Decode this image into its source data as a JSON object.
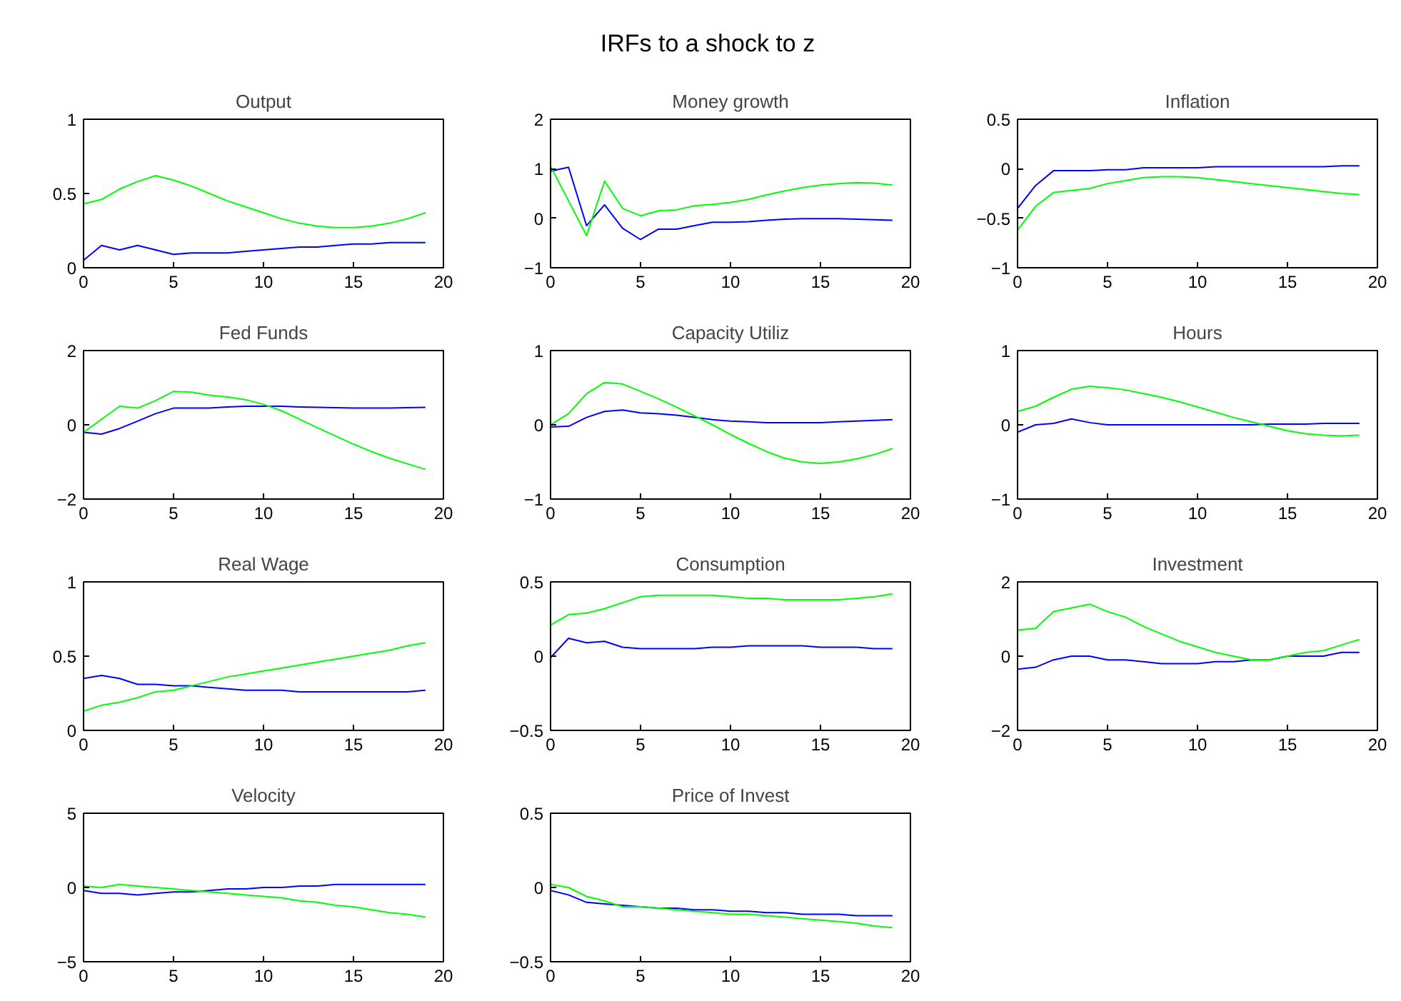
{
  "chart_data": [
    {
      "type": "other",
      "title": "IRFs to a shock to z"
    },
    {
      "type": "line",
      "title": "Output",
      "x": [
        0,
        1,
        2,
        3,
        4,
        5,
        6,
        7,
        8,
        9,
        10,
        11,
        12,
        13,
        14,
        15,
        16,
        17,
        18,
        19
      ],
      "xlim": [
        0,
        20
      ],
      "xticks": [
        0,
        5,
        10,
        15,
        20
      ],
      "ylim": [
        0,
        1
      ],
      "yticks": [
        0,
        0.5,
        1
      ],
      "series": [
        {
          "color": "#0000ff",
          "values": [
            0.05,
            0.15,
            0.12,
            0.15,
            0.12,
            0.09,
            0.1,
            0.1,
            0.1,
            0.11,
            0.12,
            0.13,
            0.14,
            0.14,
            0.15,
            0.16,
            0.16,
            0.17,
            0.17,
            0.17
          ]
        },
        {
          "color": "#00ff00",
          "values": [
            0.43,
            0.46,
            0.53,
            0.58,
            0.62,
            0.59,
            0.55,
            0.5,
            0.45,
            0.41,
            0.37,
            0.33,
            0.3,
            0.28,
            0.27,
            0.27,
            0.28,
            0.3,
            0.33,
            0.37
          ]
        }
      ]
    },
    {
      "type": "line",
      "title": "Money growth",
      "x": [
        0,
        1,
        2,
        3,
        4,
        5,
        6,
        7,
        8,
        9,
        10,
        11,
        12,
        13,
        14,
        15,
        16,
        17,
        18,
        19
      ],
      "xlim": [
        0,
        20
      ],
      "xticks": [
        0,
        5,
        10,
        15,
        20
      ],
      "ylim": [
        -1,
        2
      ],
      "yticks": [
        -1,
        0,
        1,
        2
      ],
      "series": [
        {
          "color": "#0000ff",
          "values": [
            0.95,
            1.03,
            -0.15,
            0.27,
            -0.2,
            -0.43,
            -0.22,
            -0.22,
            -0.15,
            -0.08,
            -0.08,
            -0.07,
            -0.04,
            -0.02,
            -0.01,
            -0.01,
            -0.01,
            -0.02,
            -0.03,
            -0.04
          ]
        },
        {
          "color": "#00ff00",
          "values": [
            1.05,
            0.35,
            -0.35,
            0.75,
            0.2,
            0.05,
            0.15,
            0.17,
            0.25,
            0.28,
            0.32,
            0.38,
            0.47,
            0.55,
            0.62,
            0.67,
            0.7,
            0.72,
            0.71,
            0.67
          ]
        }
      ]
    },
    {
      "type": "line",
      "title": "Inflation",
      "x": [
        0,
        1,
        2,
        3,
        4,
        5,
        6,
        7,
        8,
        9,
        10,
        11,
        12,
        13,
        14,
        15,
        16,
        17,
        18,
        19
      ],
      "xlim": [
        0,
        20
      ],
      "xticks": [
        0,
        5,
        10,
        15,
        20
      ],
      "ylim": [
        -1,
        0.5
      ],
      "yticks": [
        -1,
        -0.5,
        0,
        0.5
      ],
      "series": [
        {
          "color": "#0000ff",
          "values": [
            -0.4,
            -0.17,
            -0.02,
            -0.02,
            -0.02,
            -0.01,
            -0.01,
            0.01,
            0.01,
            0.01,
            0.01,
            0.02,
            0.02,
            0.02,
            0.02,
            0.02,
            0.02,
            0.02,
            0.03,
            0.03
          ]
        },
        {
          "color": "#00ff00",
          "values": [
            -0.62,
            -0.38,
            -0.24,
            -0.22,
            -0.2,
            -0.15,
            -0.12,
            -0.09,
            -0.08,
            -0.08,
            -0.09,
            -0.11,
            -0.13,
            -0.15,
            -0.17,
            -0.19,
            -0.21,
            -0.23,
            -0.25,
            -0.26
          ]
        }
      ]
    },
    {
      "type": "line",
      "title": "Fed Funds",
      "x": [
        0,
        1,
        2,
        3,
        4,
        5,
        6,
        7,
        8,
        9,
        10,
        11,
        12,
        13,
        14,
        15,
        16,
        17,
        18,
        19
      ],
      "xlim": [
        0,
        20
      ],
      "xticks": [
        0,
        5,
        10,
        15,
        20
      ],
      "ylim": [
        -2,
        2
      ],
      "yticks": [
        -2,
        0,
        2
      ],
      "series": [
        {
          "color": "#0000ff",
          "values": [
            -0.2,
            -0.25,
            -0.1,
            0.1,
            0.3,
            0.45,
            0.45,
            0.45,
            0.48,
            0.5,
            0.5,
            0.5,
            0.48,
            0.47,
            0.46,
            0.45,
            0.45,
            0.45,
            0.46,
            0.47
          ]
        },
        {
          "color": "#00ff00",
          "values": [
            -0.2,
            0.15,
            0.5,
            0.45,
            0.65,
            0.9,
            0.88,
            0.8,
            0.75,
            0.68,
            0.55,
            0.38,
            0.15,
            -0.08,
            -0.3,
            -0.52,
            -0.72,
            -0.9,
            -1.05,
            -1.2
          ]
        }
      ]
    },
    {
      "type": "line",
      "title": "Capacity Utiliz",
      "x": [
        0,
        1,
        2,
        3,
        4,
        5,
        6,
        7,
        8,
        9,
        10,
        11,
        12,
        13,
        14,
        15,
        16,
        17,
        18,
        19
      ],
      "xlim": [
        0,
        20
      ],
      "xticks": [
        0,
        5,
        10,
        15,
        20
      ],
      "ylim": [
        -1,
        1
      ],
      "yticks": [
        -1,
        0,
        1
      ],
      "series": [
        {
          "color": "#0000ff",
          "values": [
            -0.03,
            -0.02,
            0.1,
            0.18,
            0.2,
            0.16,
            0.15,
            0.13,
            0.1,
            0.07,
            0.05,
            0.04,
            0.03,
            0.03,
            0.03,
            0.03,
            0.04,
            0.05,
            0.06,
            0.07
          ]
        },
        {
          "color": "#00ff00",
          "values": [
            0,
            0.15,
            0.42,
            0.57,
            0.55,
            0.45,
            0.35,
            0.24,
            0.12,
            0,
            -0.13,
            -0.25,
            -0.36,
            -0.45,
            -0.5,
            -0.52,
            -0.5,
            -0.46,
            -0.4,
            -0.32
          ]
        }
      ]
    },
    {
      "type": "line",
      "title": "Hours",
      "x": [
        0,
        1,
        2,
        3,
        4,
        5,
        6,
        7,
        8,
        9,
        10,
        11,
        12,
        13,
        14,
        15,
        16,
        17,
        18,
        19
      ],
      "xlim": [
        0,
        20
      ],
      "xticks": [
        0,
        5,
        10,
        15,
        20
      ],
      "ylim": [
        -1,
        1
      ],
      "yticks": [
        -1,
        0,
        1
      ],
      "series": [
        {
          "color": "#0000ff",
          "values": [
            -0.1,
            0,
            0.02,
            0.08,
            0.03,
            0,
            0,
            0,
            0,
            0,
            0,
            0,
            0,
            0,
            0.01,
            0.01,
            0.01,
            0.02,
            0.02,
            0.02
          ]
        },
        {
          "color": "#00ff00",
          "values": [
            0.18,
            0.25,
            0.37,
            0.48,
            0.52,
            0.5,
            0.47,
            0.42,
            0.37,
            0.31,
            0.24,
            0.17,
            0.1,
            0.04,
            -0.02,
            -0.08,
            -0.12,
            -0.14,
            -0.15,
            -0.14
          ]
        }
      ]
    },
    {
      "type": "line",
      "title": "Real Wage",
      "x": [
        0,
        1,
        2,
        3,
        4,
        5,
        6,
        7,
        8,
        9,
        10,
        11,
        12,
        13,
        14,
        15,
        16,
        17,
        18,
        19
      ],
      "xlim": [
        0,
        20
      ],
      "xticks": [
        0,
        5,
        10,
        15,
        20
      ],
      "ylim": [
        0,
        1
      ],
      "yticks": [
        0,
        0.5,
        1
      ],
      "series": [
        {
          "color": "#0000ff",
          "values": [
            0.35,
            0.37,
            0.35,
            0.31,
            0.31,
            0.3,
            0.3,
            0.29,
            0.28,
            0.27,
            0.27,
            0.27,
            0.26,
            0.26,
            0.26,
            0.26,
            0.26,
            0.26,
            0.26,
            0.27
          ]
        },
        {
          "color": "#00ff00",
          "values": [
            0.13,
            0.17,
            0.19,
            0.22,
            0.26,
            0.27,
            0.3,
            0.33,
            0.36,
            0.38,
            0.4,
            0.42,
            0.44,
            0.46,
            0.48,
            0.5,
            0.52,
            0.54,
            0.57,
            0.59
          ]
        }
      ]
    },
    {
      "type": "line",
      "title": "Consumption",
      "x": [
        0,
        1,
        2,
        3,
        4,
        5,
        6,
        7,
        8,
        9,
        10,
        11,
        12,
        13,
        14,
        15,
        16,
        17,
        18,
        19
      ],
      "xlim": [
        0,
        20
      ],
      "xticks": [
        0,
        5,
        10,
        15,
        20
      ],
      "ylim": [
        -0.5,
        0.5
      ],
      "yticks": [
        -0.5,
        0,
        0.5
      ],
      "series": [
        {
          "color": "#0000ff",
          "values": [
            -0.01,
            0.12,
            0.09,
            0.1,
            0.06,
            0.05,
            0.05,
            0.05,
            0.05,
            0.06,
            0.06,
            0.07,
            0.07,
            0.07,
            0.07,
            0.06,
            0.06,
            0.06,
            0.05,
            0.05
          ]
        },
        {
          "color": "#00ff00",
          "values": [
            0.21,
            0.28,
            0.29,
            0.32,
            0.36,
            0.4,
            0.41,
            0.41,
            0.41,
            0.41,
            0.4,
            0.39,
            0.39,
            0.38,
            0.38,
            0.38,
            0.38,
            0.39,
            0.4,
            0.42
          ]
        }
      ]
    },
    {
      "type": "line",
      "title": "Investment",
      "x": [
        0,
        1,
        2,
        3,
        4,
        5,
        6,
        7,
        8,
        9,
        10,
        11,
        12,
        13,
        14,
        15,
        16,
        17,
        18,
        19
      ],
      "xlim": [
        0,
        20
      ],
      "xticks": [
        0,
        5,
        10,
        15,
        20
      ],
      "ylim": [
        -2,
        2
      ],
      "yticks": [
        -2,
        0,
        2
      ],
      "series": [
        {
          "color": "#0000ff",
          "values": [
            -0.35,
            -0.3,
            -0.1,
            0,
            0.0,
            -0.1,
            -0.1,
            -0.15,
            -0.2,
            -0.2,
            -0.2,
            -0.15,
            -0.15,
            -0.1,
            -0.1,
            0,
            0,
            0,
            0.1,
            0.1
          ]
        },
        {
          "color": "#00ff00",
          "values": [
            0.7,
            0.75,
            1.2,
            1.3,
            1.4,
            1.2,
            1.05,
            0.8,
            0.6,
            0.4,
            0.25,
            0.1,
            0,
            -0.1,
            -0.1,
            0,
            0.1,
            0.15,
            0.3,
            0.45
          ]
        }
      ]
    },
    {
      "type": "line",
      "title": "Velocity",
      "x": [
        0,
        1,
        2,
        3,
        4,
        5,
        6,
        7,
        8,
        9,
        10,
        11,
        12,
        13,
        14,
        15,
        16,
        17,
        18,
        19
      ],
      "xlim": [
        0,
        20
      ],
      "xticks": [
        0,
        5,
        10,
        15,
        20
      ],
      "ylim": [
        -5,
        5
      ],
      "yticks": [
        -5,
        0,
        5
      ],
      "series": [
        {
          "color": "#0000ff",
          "values": [
            -0.2,
            -0.4,
            -0.4,
            -0.5,
            -0.4,
            -0.3,
            -0.3,
            -0.2,
            -0.1,
            -0.1,
            0,
            0,
            0.1,
            0.1,
            0.2,
            0.2,
            0.2,
            0.2,
            0.2,
            0.2
          ]
        },
        {
          "color": "#00ff00",
          "values": [
            0.1,
            0,
            0.2,
            0.1,
            0,
            -0.1,
            -0.2,
            -0.3,
            -0.4,
            -0.5,
            -0.6,
            -0.7,
            -0.9,
            -1.0,
            -1.2,
            -1.3,
            -1.5,
            -1.7,
            -1.8,
            -2.0
          ]
        }
      ]
    },
    {
      "type": "line",
      "title": "Price of Invest",
      "x": [
        0,
        1,
        2,
        3,
        4,
        5,
        6,
        7,
        8,
        9,
        10,
        11,
        12,
        13,
        14,
        15,
        16,
        17,
        18,
        19
      ],
      "xlim": [
        0,
        20
      ],
      "xticks": [
        0,
        5,
        10,
        15,
        20
      ],
      "ylim": [
        -0.5,
        0.5
      ],
      "yticks": [
        -0.5,
        0,
        0.5
      ],
      "series": [
        {
          "color": "#0000ff",
          "values": [
            -0.02,
            -0.05,
            -0.1,
            -0.11,
            -0.12,
            -0.13,
            -0.14,
            -0.14,
            -0.15,
            -0.15,
            -0.16,
            -0.16,
            -0.17,
            -0.17,
            -0.18,
            -0.18,
            -0.18,
            -0.19,
            -0.19,
            -0.19
          ]
        },
        {
          "color": "#00ff00",
          "values": [
            0.02,
            0,
            -0.06,
            -0.09,
            -0.13,
            -0.13,
            -0.14,
            -0.15,
            -0.16,
            -0.17,
            -0.18,
            -0.18,
            -0.19,
            -0.2,
            -0.21,
            -0.22,
            -0.23,
            -0.24,
            -0.26,
            -0.27
          ]
        }
      ]
    }
  ]
}
